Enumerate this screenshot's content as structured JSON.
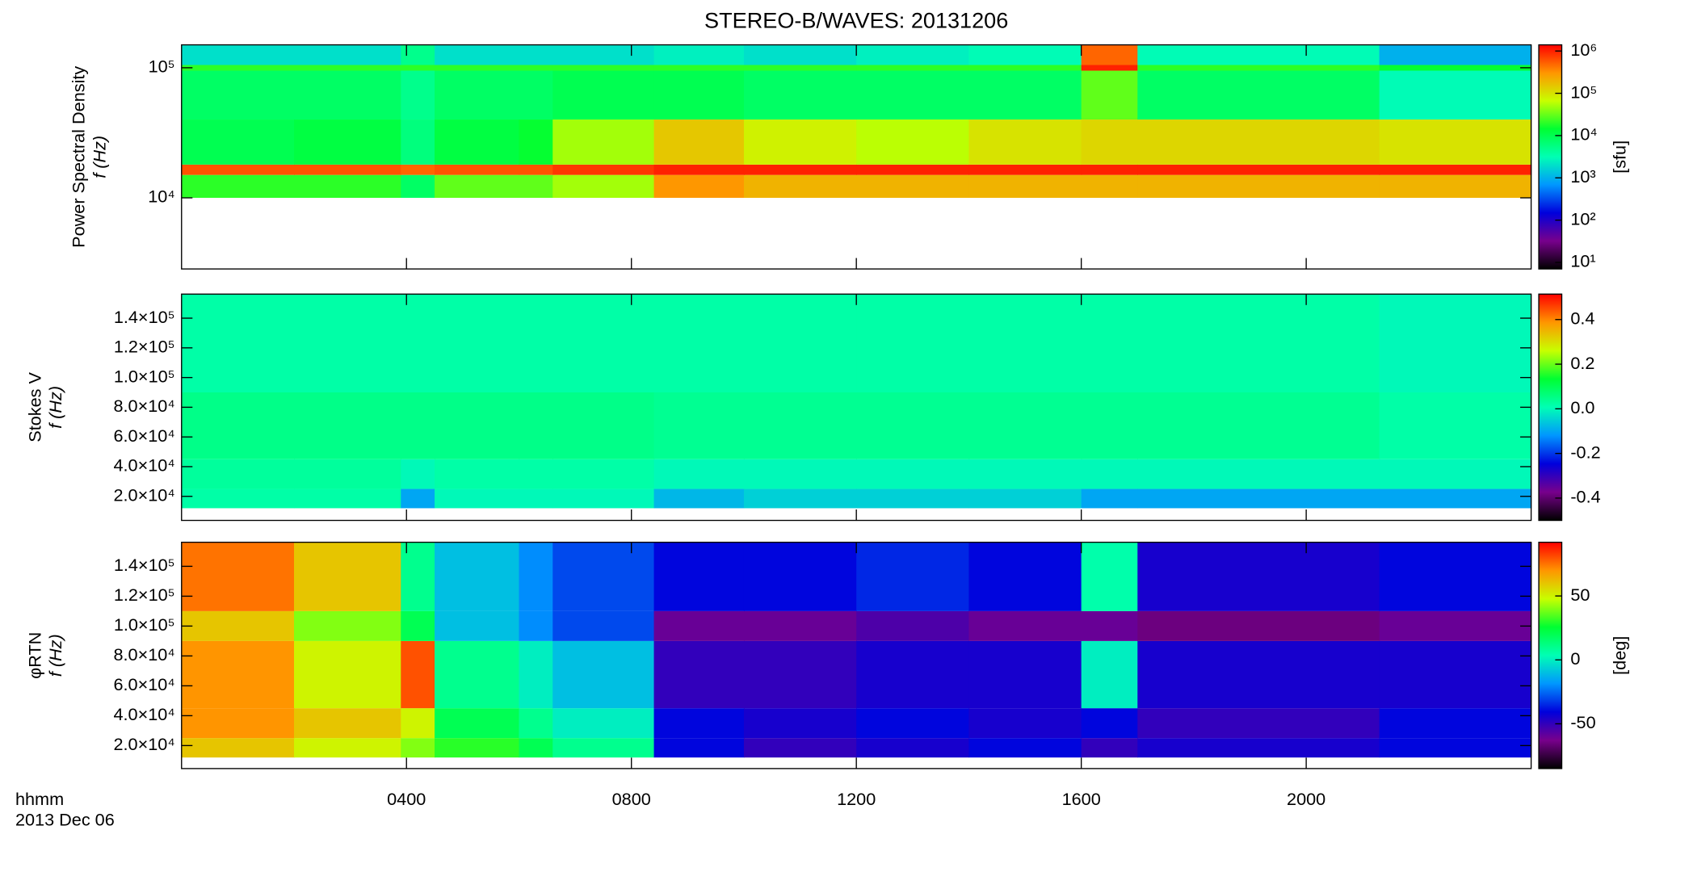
{
  "title": "STEREO-B/WAVES: 20131206",
  "x_axis": {
    "label": "hhmm",
    "date": "2013 Dec 06",
    "xlim": [
      0,
      24
    ],
    "xticks": [
      {
        "value": 4,
        "label": "0400"
      },
      {
        "value": 8,
        "label": "0800"
      },
      {
        "value": 12,
        "label": "1200"
      },
      {
        "value": 16,
        "label": "1600"
      },
      {
        "value": 20,
        "label": "2000"
      }
    ]
  },
  "colormap": [
    "#000000",
    "#78008c",
    "#0000dc",
    "#0096ff",
    "#00ffb4",
    "#00ff32",
    "#c8ff00",
    "#ff9600",
    "#ff0000"
  ],
  "chart_data": [
    {
      "type": "heatmap",
      "ylabel": "Power Spectral Density",
      "yunit": "f (Hz)",
      "ylog": true,
      "ylim": [
        2840,
        150000
      ],
      "yticks": [
        {
          "value": 10000,
          "label": "10⁴"
        },
        {
          "value": 100000,
          "label": "10⁵"
        }
      ],
      "zlabel": "[sfu]",
      "zlog": true,
      "zlim": [
        7,
        1400000
      ],
      "zticks": [
        {
          "value": 10,
          "label": "10¹"
        },
        {
          "value": 100,
          "label": "10²"
        },
        {
          "value": 1000,
          "label": "10³"
        },
        {
          "value": 10000,
          "label": "10⁴"
        },
        {
          "value": 100000,
          "label": "10⁵"
        },
        {
          "value": 1000000,
          "label": "10⁶"
        }
      ],
      "x": [
        0,
        2,
        3.9,
        4.5,
        6,
        6.6,
        8.4,
        10,
        12,
        14,
        16,
        17,
        21.3,
        24
      ],
      "y": [
        10000,
        15000,
        18000,
        40000,
        95000,
        105000,
        150000
      ],
      "z": [
        [
          20000,
          20000,
          8000,
          30000,
          30000,
          50000,
          300000,
          200000,
          200000,
          200000,
          200000,
          200000,
          200000
        ],
        [
          600000,
          600000,
          500000,
          600000,
          600000,
          800000,
          1000000,
          1000000,
          1000000,
          1000000,
          1000000,
          1000000,
          1000000
        ],
        [
          10000,
          12000,
          6000,
          12000,
          15000,
          50000,
          150000,
          80000,
          60000,
          100000,
          120000,
          120000,
          100000
        ],
        [
          8000,
          8000,
          5000,
          8000,
          8000,
          10000,
          10000,
          8000,
          8000,
          8000,
          30000,
          8000,
          3000
        ],
        [
          20000,
          20000,
          20000,
          20000,
          20000,
          20000,
          20000,
          20000,
          20000,
          20000,
          1000000,
          20000,
          15000
        ],
        [
          2000,
          2000,
          5000,
          2000,
          2000,
          2000,
          2500,
          2000,
          2500,
          3000,
          500000,
          3000,
          1000
        ]
      ]
    },
    {
      "type": "heatmap",
      "ylabel": "Stokes V",
      "yunit": "f (Hz)",
      "ylog": false,
      "ylim": [
        3800,
        156200
      ],
      "yticks": [
        {
          "value": 20000,
          "label": "2.0×10⁴"
        },
        {
          "value": 40000,
          "label": "4.0×10⁴"
        },
        {
          "value": 60000,
          "label": "6.0×10⁴"
        },
        {
          "value": 80000,
          "label": "8.0×10⁴"
        },
        {
          "value": 100000,
          "label": "1.0×10⁵"
        },
        {
          "value": 120000,
          "label": "1.2×10⁵"
        },
        {
          "value": 140000,
          "label": "1.4×10⁵"
        }
      ],
      "zlog": false,
      "zlim": [
        -0.5,
        0.514
      ],
      "zticks": [
        -0.4,
        -0.2,
        {
          "value": 0,
          "label": "0.0"
        },
        0.2,
        0.4
      ],
      "x": [
        0,
        2,
        3.9,
        4.5,
        6,
        6.6,
        8.4,
        10,
        12,
        14,
        16,
        17,
        21.3,
        24
      ],
      "y": [
        12000,
        25000,
        45000,
        90000,
        156200
      ],
      "z": [
        [
          0.02,
          0.02,
          -0.1,
          0.0,
          0.0,
          0.0,
          -0.08,
          -0.05,
          -0.05,
          -0.05,
          -0.1,
          -0.1,
          -0.1
        ],
        [
          0.03,
          0.03,
          0.0,
          0.02,
          0.02,
          0.02,
          0.0,
          0.0,
          0.0,
          0.0,
          0.0,
          0.0,
          0.0
        ],
        [
          0.05,
          0.05,
          0.05,
          0.05,
          0.05,
          0.05,
          0.04,
          0.04,
          0.04,
          0.04,
          0.04,
          0.04,
          0.02
        ],
        [
          0.02,
          0.02,
          0.02,
          0.02,
          0.02,
          0.02,
          0.02,
          0.02,
          0.02,
          0.02,
          0.02,
          0.02,
          0.0
        ]
      ]
    },
    {
      "type": "heatmap",
      "ylabel": "φRTN",
      "yunit": "f (Hz)",
      "ylog": false,
      "ylim": [
        4600,
        156100
      ],
      "yticks": [
        {
          "value": 20000,
          "label": "2.0×10⁴"
        },
        {
          "value": 40000,
          "label": "4.0×10⁴"
        },
        {
          "value": 60000,
          "label": "6.0×10⁴"
        },
        {
          "value": 80000,
          "label": "8.0×10⁴"
        },
        {
          "value": 100000,
          "label": "1.0×10⁵"
        },
        {
          "value": 120000,
          "label": "1.2×10⁵"
        },
        {
          "value": 140000,
          "label": "1.4×10⁵"
        }
      ],
      "zlabel": "[deg]",
      "zlog": false,
      "zlim": [
        -85,
        92
      ],
      "zticks": [
        -50,
        0,
        50
      ],
      "x": [
        0,
        2,
        3.9,
        4.5,
        6,
        6.6,
        8.4,
        10,
        12,
        14,
        16,
        17,
        21.3,
        24
      ],
      "y": [
        12000,
        25000,
        45000,
        90000,
        110000,
        156100
      ],
      "z": [
        [
          60,
          50,
          40,
          30,
          20,
          10,
          -40,
          -50,
          -45,
          -40,
          -50,
          -45,
          -40
        ],
        [
          70,
          60,
          50,
          20,
          10,
          0,
          -40,
          -45,
          -40,
          -45,
          -40,
          -50,
          -40
        ],
        [
          70,
          50,
          80,
          10,
          0,
          -10,
          -50,
          -50,
          -45,
          -45,
          0,
          -45,
          -45
        ],
        [
          60,
          40,
          20,
          -10,
          -20,
          -30,
          -60,
          -60,
          -55,
          -60,
          -60,
          -65,
          -60
        ],
        [
          75,
          60,
          10,
          -10,
          -20,
          -30,
          -40,
          -40,
          -35,
          -40,
          5,
          -45,
          -40
        ]
      ]
    }
  ]
}
